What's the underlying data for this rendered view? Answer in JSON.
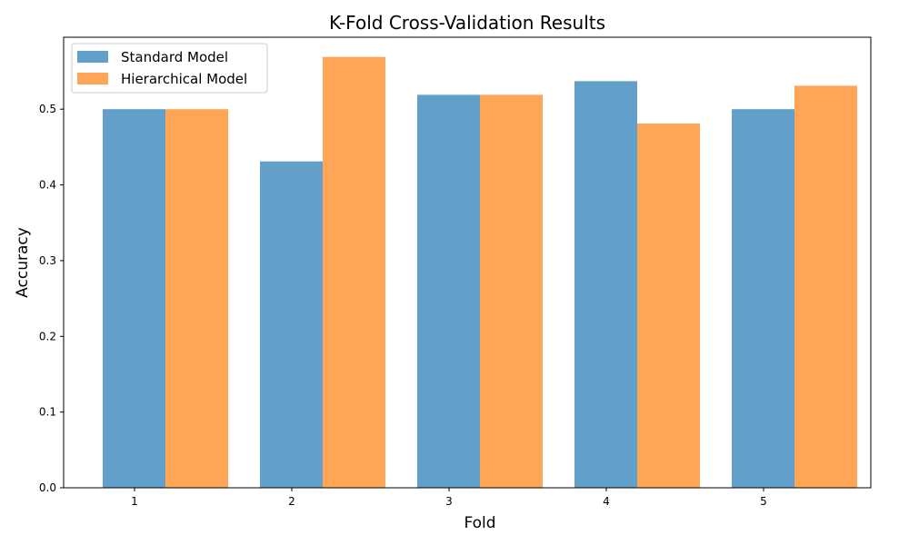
{
  "chart_data": {
    "type": "bar",
    "title": "K-Fold Cross-Validation Results",
    "xlabel": "Fold",
    "ylabel": "Accuracy",
    "categories": [
      "1",
      "2",
      "3",
      "4",
      "5"
    ],
    "series": [
      {
        "name": "Standard Model",
        "color": "#62a0cb",
        "values": [
          0.5,
          0.431,
          0.519,
          0.537,
          0.5
        ]
      },
      {
        "name": "Hierarchical Model",
        "color": "#ffa556",
        "values": [
          0.5,
          0.569,
          0.519,
          0.481,
          0.531
        ]
      }
    ],
    "ylim": [
      0,
      0.595
    ],
    "yticks": [
      "0.0",
      "0.1",
      "0.2",
      "0.3",
      "0.4",
      "0.5"
    ],
    "grid": false,
    "legend_position": "top-left"
  }
}
